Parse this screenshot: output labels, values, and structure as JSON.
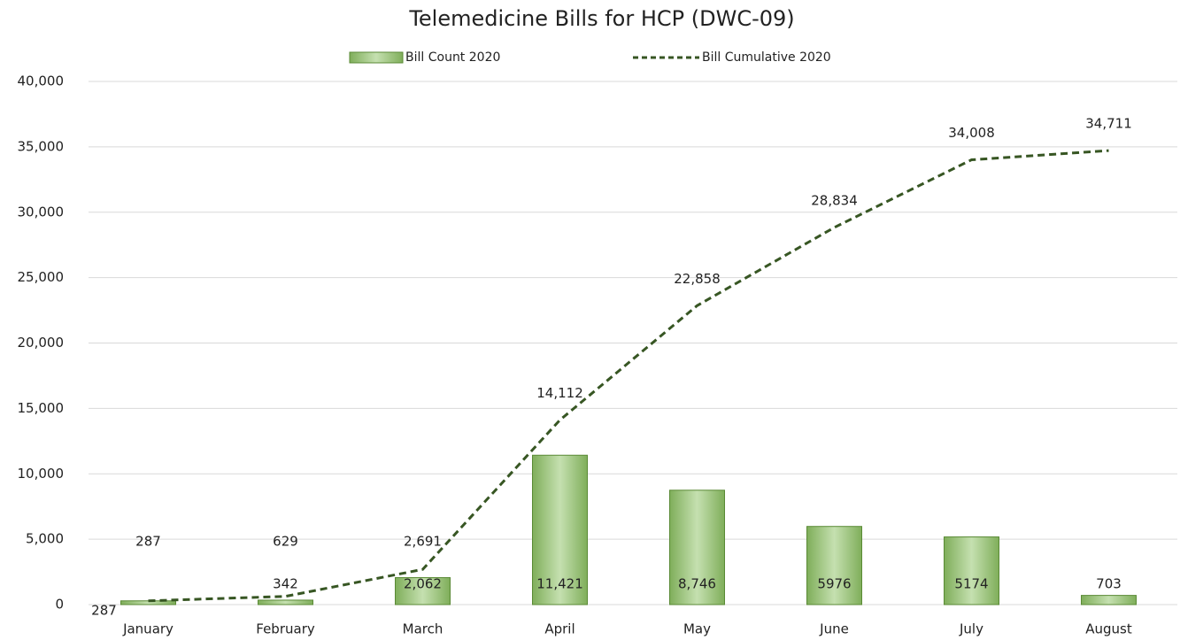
{
  "chart_data": {
    "type": "bar_line",
    "title": "Telemedicine Bills for HCP (DWC-09)",
    "categories": [
      "January",
      "February",
      "March",
      "April",
      "May",
      "June",
      "July",
      "August"
    ],
    "series": [
      {
        "name": "Bill Count 2020",
        "type": "bar",
        "color": "#a9d18e",
        "values": [
          287,
          342,
          2062,
          11421,
          8746,
          5976,
          5174,
          703
        ],
        "value_labels": [
          "287",
          "342",
          "2,062",
          "11,421",
          "8,746",
          "5976",
          "5174",
          "703"
        ]
      },
      {
        "name": "Bill Cumulative 2020",
        "type": "line",
        "color": "#375623",
        "values": [
          287,
          629,
          2691,
          14112,
          22858,
          28834,
          34008,
          34711
        ],
        "value_labels": [
          "287",
          "629",
          "2,691",
          "14,112",
          "22,858",
          "28,834",
          "34,008",
          "34,711"
        ]
      }
    ],
    "ylim": [
      0,
      40000
    ],
    "yticks": [
      0,
      {
        "value": 5000,
        "label": "5,000"
      },
      {
        "value": 10000,
        "label": "10,000"
      },
      {
        "value": 15000,
        "label": "15,000"
      },
      {
        "value": 20000,
        "label": "20,000"
      },
      {
        "value": 25000,
        "label": "25,000"
      },
      {
        "value": 30000,
        "label": "30,000"
      },
      {
        "value": 35000,
        "label": "35,000"
      },
      {
        "value": 40000,
        "label": "40,000"
      }
    ],
    "grid": true,
    "legend": "top"
  }
}
